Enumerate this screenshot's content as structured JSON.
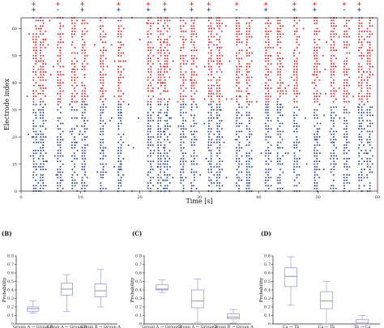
{
  "colors": {
    "red": "#e31e24",
    "blue": "#233f94",
    "box": "#8a8fd6",
    "axis": "#222222"
  },
  "chart_data": [
    {
      "id": "A",
      "type": "scatter",
      "title": "",
      "xlabel": "Time [s]",
      "ylabel": "Electrode index",
      "xlim": [
        0,
        60
      ],
      "ylim": [
        0,
        64
      ],
      "x_ticks": [
        0,
        10,
        20,
        30,
        40,
        50,
        60
      ],
      "y_ticks": [
        0,
        10,
        20,
        30,
        40,
        50,
        60
      ],
      "grid": false,
      "series": [
        {
          "electrodes": [
            33,
            64
          ],
          "color": "red"
        },
        {
          "electrodes": [
            0,
            32
          ],
          "color": "blue"
        }
      ],
      "burst_times": [
        2.1,
        3.3,
        6.2,
        8.6,
        10.3,
        13.4,
        16.4,
        21.4,
        23.1,
        24.2,
        26.9,
        28.7,
        31.6,
        33.0,
        36.3,
        38.0,
        41.2,
        43.2,
        46.0,
        49.4,
        52.2,
        54.4,
        56.9,
        58.3
      ],
      "top_markers": [
        {
          "t": 2.1,
          "symbols": [
            "+",
            "+"
          ]
        },
        {
          "t": 6.2,
          "symbols": [
            "+",
            "-"
          ]
        },
        {
          "t": 10.3,
          "symbols": [
            "+",
            "+"
          ]
        },
        {
          "t": 16.4,
          "symbols": [
            "+",
            "+"
          ]
        },
        {
          "t": 21.4,
          "symbols": [
            "+",
            "+"
          ]
        },
        {
          "t": 24.2,
          "symbols": [
            "+",
            "+"
          ]
        },
        {
          "t": 28.7,
          "symbols": [
            "+",
            "+"
          ]
        },
        {
          "t": 31.6,
          "symbols": [
            "+",
            "+"
          ]
        },
        {
          "t": 36.3,
          "symbols": [
            "+",
            "-"
          ]
        },
        {
          "t": 41.2,
          "symbols": [
            "+",
            "+"
          ]
        },
        {
          "t": 46.0,
          "symbols": [
            "+",
            "+"
          ]
        },
        {
          "t": 49.4,
          "symbols": [
            "+",
            "+"
          ]
        },
        {
          "t": 54.4,
          "symbols": [
            "+",
            "-"
          ]
        },
        {
          "t": 56.9,
          "symbols": [
            "+",
            "+"
          ]
        }
      ]
    },
    {
      "id": "B",
      "panel_label": "(B)",
      "type": "box",
      "ylabel": "Probability",
      "ylim": [
        0,
        0.8
      ],
      "y_ticks": [
        0,
        0.1,
        0.2,
        0.3,
        0.4,
        0.5,
        0.6,
        0.7,
        0.8
      ],
      "categories": [
        "Group A → Group B",
        "Group A ← Group B",
        "Group B → Group A"
      ],
      "boxes": [
        {
          "whisker_low": 0.13,
          "q1": 0.15,
          "median": 0.18,
          "q3": 0.2,
          "whisker_high": 0.27
        },
        {
          "whisker_low": 0.15,
          "q1": 0.34,
          "median": 0.41,
          "q3": 0.48,
          "whisker_high": 0.58
        },
        {
          "whisker_low": 0.2,
          "q1": 0.32,
          "median": 0.39,
          "q3": 0.47,
          "whisker_high": 0.64
        }
      ]
    },
    {
      "id": "C",
      "panel_label": "(C)",
      "type": "box",
      "ylabel": "Probability",
      "ylim": [
        0,
        0.8
      ],
      "y_ticks": [
        0,
        0.1,
        0.2,
        0.3,
        0.4,
        0.5,
        0.6,
        0.7,
        0.8
      ],
      "categories": [
        "Group A → Group B",
        "Group A ← Group B",
        "Group B → Group A"
      ],
      "boxes": [
        {
          "whisker_low": 0.37,
          "q1": 0.4,
          "median": 0.41,
          "q3": 0.46,
          "whisker_high": 0.52
        },
        {
          "whisker_low": 0.02,
          "q1": 0.19,
          "median": 0.27,
          "q3": 0.4,
          "whisker_high": 0.53
        },
        {
          "whisker_low": 0.01,
          "q1": 0.06,
          "median": 0.08,
          "q3": 0.12,
          "whisker_high": 0.17
        }
      ]
    },
    {
      "id": "D",
      "panel_label": "(D)",
      "type": "box",
      "ylabel": "Probability",
      "ylim": [
        0,
        0.8
      ],
      "y_ticks": [
        0,
        0.1,
        0.2,
        0.3,
        0.4,
        0.5,
        0.6,
        0.7,
        0.8
      ],
      "categories": [
        "Ca → Tb",
        "Ca ← Tb",
        "Tb → Ca"
      ],
      "boxes": [
        {
          "whisker_low": 0.22,
          "q1": 0.44,
          "median": 0.56,
          "q3": 0.66,
          "whisker_high": 0.79
        },
        {
          "whisker_low": 0.0,
          "q1": 0.18,
          "median": 0.27,
          "q3": 0.38,
          "whisker_high": 0.5
        },
        {
          "whisker_low": 0.0,
          "q1": 0.0,
          "median": 0.01,
          "q3": 0.05,
          "whisker_high": 0.1
        }
      ]
    }
  ]
}
